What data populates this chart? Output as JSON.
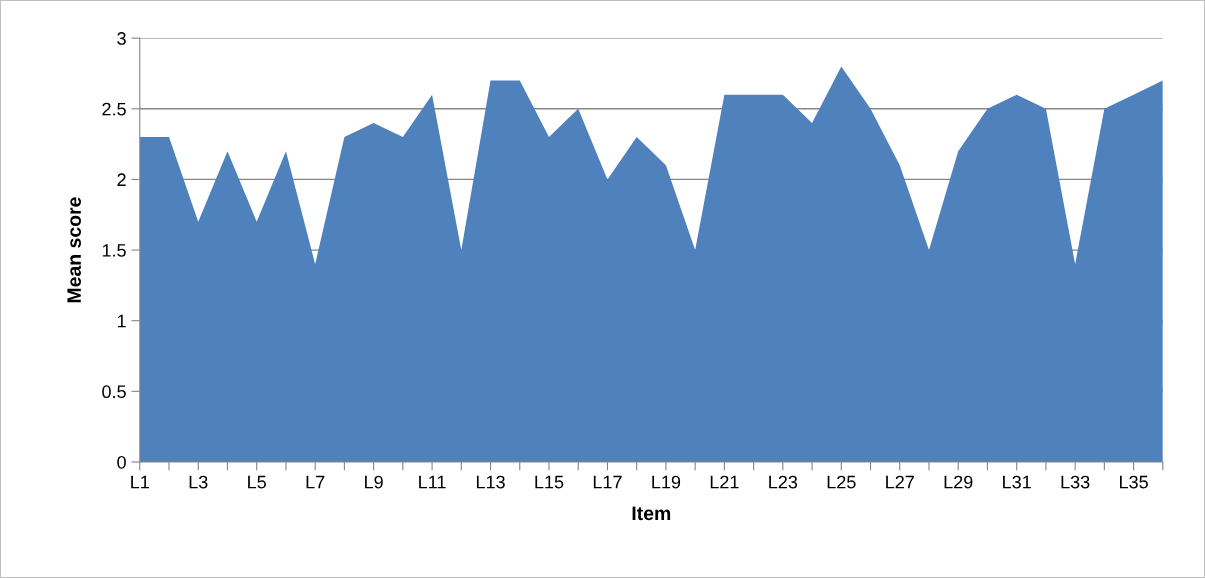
{
  "chart_data": {
    "type": "area",
    "xlabel": "Item",
    "ylabel": "Mean score",
    "categories": [
      "L1",
      null,
      "L3",
      null,
      "L5",
      null,
      "L7",
      null,
      "L9",
      null,
      "L11",
      null,
      "L13",
      null,
      "L15",
      null,
      "L17",
      null,
      "L19",
      null,
      "L21",
      null,
      "L23",
      null,
      "L25",
      null,
      "L27",
      null,
      "L29",
      null,
      "L31",
      null,
      "L33",
      null,
      "L35",
      null
    ],
    "values": [
      2.3,
      2.3,
      1.7,
      2.2,
      1.7,
      2.2,
      1.4,
      2.3,
      2.4,
      2.3,
      2.6,
      1.5,
      2.7,
      2.7,
      2.3,
      2.5,
      2.0,
      2.3,
      2.1,
      1.5,
      2.6,
      2.6,
      2.6,
      2.4,
      2.8,
      2.5,
      2.1,
      1.5,
      2.2,
      2.5,
      2.6,
      2.5,
      1.4,
      2.5,
      2.6,
      2.7
    ],
    "color": "#4f81bd",
    "ylim": [
      0,
      3
    ],
    "yticks": [
      0,
      0.5,
      1,
      1.5,
      2,
      2.5,
      3
    ],
    "grid": "y",
    "legend": false
  }
}
